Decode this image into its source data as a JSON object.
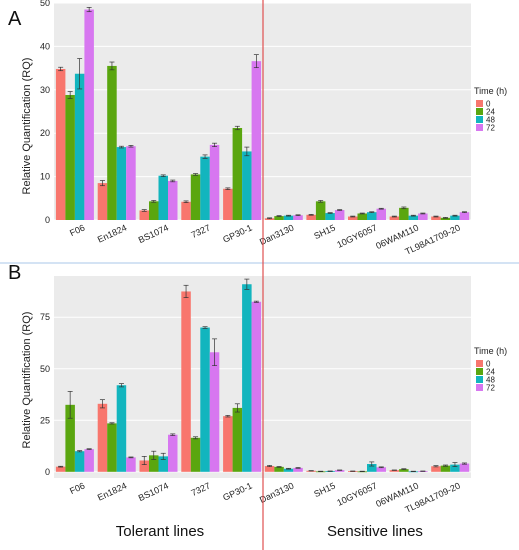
{
  "colors": {
    "series": [
      "#f8766d",
      "#5aa60f",
      "#12b5be",
      "#d777f0"
    ],
    "panel_bg": "#ebebeb",
    "grid": "#ffffff",
    "divider": "#e05050",
    "separator": "#a9c7e8"
  },
  "group_labels": {
    "tolerant": "Tolerant lines",
    "sensitive": "Sensitive lines"
  },
  "chart_data": [
    {
      "type": "bar",
      "panel": "A",
      "ylabel": "Relative Quantification (RQ)",
      "ylim": [
        0,
        50
      ],
      "yticks": [
        0,
        10,
        20,
        30,
        40,
        50
      ],
      "grid": true,
      "legend_title": "Time (h)",
      "legend_position": "right",
      "categories": [
        "F06",
        "En1824",
        "BS1074",
        "7327",
        "GP30-1",
        "Dan3130",
        "SH15",
        "10GY6057",
        "06WAM110",
        "TL98A1709-20"
      ],
      "series": [
        {
          "name": "0",
          "values": [
            34.8,
            8.5,
            2.2,
            4.2,
            7.2,
            0.4,
            1.2,
            0.8,
            0.8,
            0.8
          ],
          "errors": [
            0.4,
            0.6,
            0.2,
            0.2,
            0.2,
            0.1,
            0.1,
            0.1,
            0.1,
            0.1
          ]
        },
        {
          "name": "24",
          "values": [
            28.8,
            35.5,
            4.3,
            10.5,
            21.2,
            0.9,
            4.3,
            1.5,
            2.8,
            0.5
          ],
          "errors": [
            0.8,
            0.9,
            0.2,
            0.2,
            0.4,
            0.1,
            0.2,
            0.1,
            0.2,
            0.1
          ]
        },
        {
          "name": "48",
          "values": [
            33.7,
            16.8,
            10.2,
            14.6,
            15.8,
            1.0,
            1.6,
            1.8,
            1.0,
            1.0
          ],
          "errors": [
            3.5,
            0.2,
            0.2,
            0.4,
            1.0,
            0.1,
            0.1,
            0.1,
            0.1,
            0.1
          ]
        },
        {
          "name": "72",
          "values": [
            48.5,
            17.0,
            9.0,
            17.3,
            36.6,
            1.1,
            2.3,
            2.6,
            1.5,
            1.8
          ],
          "errors": [
            0.5,
            0.2,
            0.2,
            0.4,
            1.5,
            0.1,
            0.1,
            0.1,
            0.1,
            0.1
          ]
        }
      ]
    },
    {
      "type": "bar",
      "panel": "B",
      "ylabel": "Relative Quantification (RQ)",
      "ylim": [
        -3,
        95
      ],
      "yticks": [
        0,
        25,
        50,
        75
      ],
      "grid": true,
      "legend_title": "Time (h)",
      "legend_position": "right",
      "categories": [
        "F06",
        "En1824",
        "BS1074",
        "7327",
        "GP30-1",
        "Dan3130",
        "SH15",
        "10GY6057",
        "06WAM110",
        "TL98A1709-20"
      ],
      "series": [
        {
          "name": "0",
          "values": [
            2.5,
            33.0,
            5.5,
            87.5,
            27.0,
            2.8,
            0.5,
            0.3,
            0.8,
            2.7
          ],
          "errors": [
            0.2,
            2.0,
            2.0,
            3.0,
            0.4,
            0.3,
            0.1,
            0.1,
            0.1,
            0.3
          ]
        },
        {
          "name": "24",
          "values": [
            32.5,
            23.5,
            8.0,
            16.5,
            31.0,
            2.4,
            0.2,
            0.2,
            1.3,
            3.0
          ],
          "errors": [
            6.5,
            0.3,
            2.0,
            0.5,
            2.0,
            0.2,
            0.1,
            0.1,
            0.2,
            0.3
          ]
        },
        {
          "name": "48",
          "values": [
            10.0,
            42.0,
            7.5,
            70.0,
            91.0,
            1.5,
            0.3,
            3.8,
            0.2,
            3.5
          ],
          "errors": [
            0.3,
            0.8,
            1.5,
            0.4,
            2.5,
            0.2,
            0.1,
            1.0,
            0.1,
            1.0
          ]
        },
        {
          "name": "72",
          "values": [
            11.0,
            7.0,
            18.0,
            58.0,
            82.5,
            1.9,
            0.8,
            2.2,
            0.3,
            4.0
          ],
          "errors": [
            0.2,
            0.2,
            0.4,
            6.5,
            0.3,
            0.2,
            0.1,
            0.2,
            0.1,
            0.3
          ]
        }
      ]
    }
  ]
}
